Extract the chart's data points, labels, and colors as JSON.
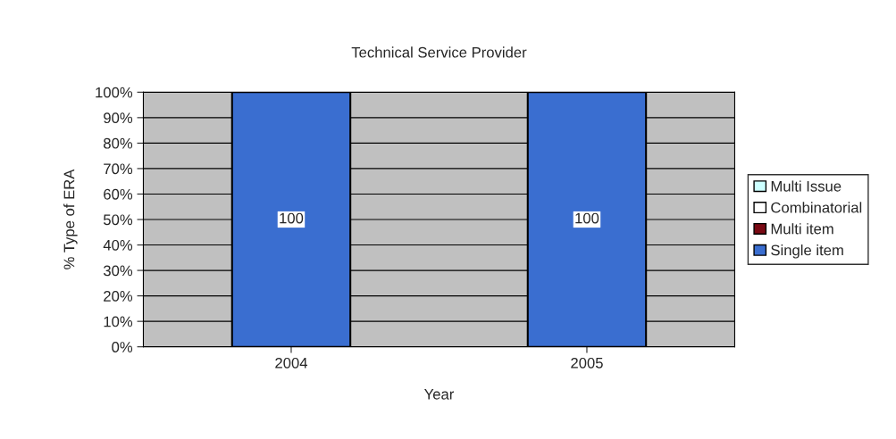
{
  "chart_data": {
    "type": "bar",
    "title": "Technical Service Provider",
    "xlabel": "Year",
    "ylabel": "% Type of ERA",
    "categories": [
      "2004",
      "2005"
    ],
    "stacked": true,
    "series": [
      {
        "name": "Single item",
        "color": "#3a6ed0",
        "values": [
          100,
          100
        ],
        "value_labels": [
          "100",
          "100"
        ]
      },
      {
        "name": "Multi item",
        "color": "#7a0a14",
        "values": [
          0,
          0
        ]
      },
      {
        "name": "Combinatorial",
        "color": "#ffffff",
        "values": [
          0,
          0
        ]
      },
      {
        "name": "Multi Issue",
        "color": "#ccffff",
        "values": [
          0,
          0
        ]
      }
    ],
    "ylim": [
      0,
      100
    ],
    "yticks": [
      {
        "value": 0,
        "label": "0%"
      },
      {
        "value": 10,
        "label": "10%"
      },
      {
        "value": 20,
        "label": "20%"
      },
      {
        "value": 30,
        "label": "30%"
      },
      {
        "value": 40,
        "label": "40%"
      },
      {
        "value": 50,
        "label": "50%"
      },
      {
        "value": 60,
        "label": "60%"
      },
      {
        "value": 70,
        "label": "70%"
      },
      {
        "value": 80,
        "label": "80%"
      },
      {
        "value": 90,
        "label": "90%"
      },
      {
        "value": 100,
        "label": "100%"
      }
    ],
    "grid": "y",
    "legend": "right"
  }
}
